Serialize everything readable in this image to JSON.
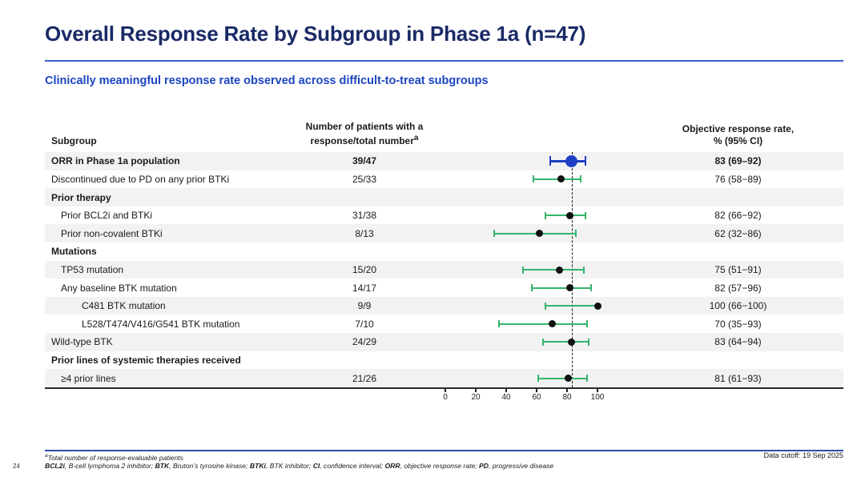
{
  "slide": {
    "title": "Overall Response Rate by Subgroup in Phase 1a (n=47)",
    "subtitle": "Clinically meaningful response rate observed across difficult-to-treat subgroups",
    "page_number": "24",
    "data_cutoff": "Data cutoff: 19 Sep 2025",
    "footnote1_sup": "a",
    "footnote1": "Total number of response-evaluable patients",
    "abbreviations": [
      {
        "term": "BCL2i",
        "desc": ", B-cell lymphoma 2 inhibitor; "
      },
      {
        "term": "BTK",
        "desc": ", Bruton’s tyrosine kinase; "
      },
      {
        "term": "BTKi",
        "desc": ", BTK inhibitor; "
      },
      {
        "term": "CI",
        "desc": ", confidence interval; "
      },
      {
        "term": "ORR",
        "desc": ", objective response rate; "
      },
      {
        "term": "PD",
        "desc": ", progressive disease"
      }
    ]
  },
  "colors": {
    "title_navy": "#1a2a66",
    "subtitle_blue": "#1b45c2",
    "divider_blue": "#3d5fc4",
    "footer_divider_blue": "#2e4fa5",
    "row_shade_gray": "#f2f2f2",
    "ci_green": "#35b46c",
    "primary_blue": "#1c3fc4",
    "marker_black": "#111111"
  },
  "table": {
    "headers": {
      "subgroup": "Subgroup",
      "patients_line1": "Number of patients with a",
      "patients_line2": "response/total number",
      "patients_sup": "a",
      "orr_line1": "Objective response rate,",
      "orr_line2": "% (95% CI)"
    },
    "rows": [
      {
        "label": "ORR in Phase 1a population",
        "indent": 0,
        "bold": true,
        "shaded": true,
        "patients": "39/47",
        "orr": "83 (69–92)",
        "est": 83,
        "lo": 69,
        "hi": 92,
        "primary": true
      },
      {
        "label": "Discontinued due to PD on any prior BTKi",
        "indent": 0,
        "bold": false,
        "shaded": false,
        "patients": "25/33",
        "orr": "76 (58−89)",
        "est": 76,
        "lo": 58,
        "hi": 89,
        "primary": false
      },
      {
        "label": "Prior therapy",
        "indent": 0,
        "bold": true,
        "shaded": true,
        "patients": "",
        "orr": "",
        "est": null,
        "lo": null,
        "hi": null,
        "primary": false
      },
      {
        "label": "Prior BCL2i and BTKi",
        "indent": 1,
        "bold": false,
        "shaded": false,
        "patients": "31/38",
        "orr": "82 (66−92)",
        "est": 82,
        "lo": 66,
        "hi": 92,
        "primary": false
      },
      {
        "label": "Prior non-covalent BTKi",
        "indent": 1,
        "bold": false,
        "shaded": true,
        "patients": "8/13",
        "orr": "62 (32−86)",
        "est": 62,
        "lo": 32,
        "hi": 86,
        "primary": false
      },
      {
        "label": "Mutations",
        "indent": 0,
        "bold": true,
        "shaded": false,
        "patients": "",
        "orr": "",
        "est": null,
        "lo": null,
        "hi": null,
        "primary": false
      },
      {
        "label": "TP53 mutation",
        "indent": 1,
        "bold": false,
        "shaded": true,
        "patients": "15/20",
        "orr": "75 (51−91)",
        "est": 75,
        "lo": 51,
        "hi": 91,
        "primary": false
      },
      {
        "label": "Any baseline BTK mutation",
        "indent": 1,
        "bold": false,
        "shaded": false,
        "patients": "14/17",
        "orr": "82 (57−96)",
        "est": 82,
        "lo": 57,
        "hi": 96,
        "primary": false
      },
      {
        "label": "C481 BTK mutation",
        "indent": 2,
        "bold": false,
        "shaded": true,
        "patients": "9/9",
        "orr": "100 (66−100)",
        "est": 100,
        "lo": 66,
        "hi": 100,
        "primary": false
      },
      {
        "label": "L528/T474/V416/G541 BTK mutation",
        "indent": 2,
        "bold": false,
        "shaded": false,
        "patients": "7/10",
        "orr": "70 (35−93)",
        "est": 70,
        "lo": 35,
        "hi": 93,
        "primary": false
      },
      {
        "label": "Wild-type BTK",
        "indent": 0,
        "bold": false,
        "shaded": true,
        "patients": "24/29",
        "orr": "83 (64−94)",
        "est": 83,
        "lo": 64,
        "hi": 94,
        "primary": false
      },
      {
        "label": "Prior lines of systemic therapies received",
        "indent": 0,
        "bold": true,
        "shaded": false,
        "patients": "",
        "orr": "",
        "est": null,
        "lo": null,
        "hi": null,
        "primary": false
      },
      {
        "label": "≥4 prior lines",
        "indent": 1,
        "bold": false,
        "shaded": true,
        "patients": "21/26",
        "orr": "81 (61−93)",
        "est": 81,
        "lo": 61,
        "hi": 93,
        "primary": false
      }
    ]
  },
  "chart_data": {
    "type": "scatter",
    "subtype": "forest-plot",
    "title": "Overall Response Rate by Subgroup in Phase 1a (n=47)",
    "xlabel": "Objective response rate, % (95% CI)",
    "xlim": [
      0,
      112
    ],
    "x_ticks": [
      0,
      20,
      40,
      60,
      80,
      100
    ],
    "reference_line_x": 83,
    "reference_line_style": "dashed",
    "grid": false,
    "legend": false,
    "ci_color": "#35b46c",
    "primary_point_color": "#1c3fc4",
    "point_color": "#111111",
    "points": [
      {
        "label": "ORR in Phase 1a population",
        "n": "39/47",
        "estimate": 83,
        "ci_low": 69,
        "ci_high": 92,
        "highlight": true
      },
      {
        "label": "Discontinued due to PD on any prior BTKi",
        "n": "25/33",
        "estimate": 76,
        "ci_low": 58,
        "ci_high": 89,
        "highlight": false
      },
      {
        "label": "Prior BCL2i and BTKi",
        "n": "31/38",
        "estimate": 82,
        "ci_low": 66,
        "ci_high": 92,
        "highlight": false
      },
      {
        "label": "Prior non-covalent BTKi",
        "n": "8/13",
        "estimate": 62,
        "ci_low": 32,
        "ci_high": 86,
        "highlight": false
      },
      {
        "label": "TP53 mutation",
        "n": "15/20",
        "estimate": 75,
        "ci_low": 51,
        "ci_high": 91,
        "highlight": false
      },
      {
        "label": "Any baseline BTK mutation",
        "n": "14/17",
        "estimate": 82,
        "ci_low": 57,
        "ci_high": 96,
        "highlight": false
      },
      {
        "label": "C481 BTK mutation",
        "n": "9/9",
        "estimate": 100,
        "ci_low": 66,
        "ci_high": 100,
        "highlight": false
      },
      {
        "label": "L528/T474/V416/G541 BTK mutation",
        "n": "7/10",
        "estimate": 70,
        "ci_low": 35,
        "ci_high": 93,
        "highlight": false
      },
      {
        "label": "Wild-type BTK",
        "n": "24/29",
        "estimate": 83,
        "ci_low": 64,
        "ci_high": 94,
        "highlight": false
      },
      {
        "label": "≥4 prior lines",
        "n": "21/26",
        "estimate": 81,
        "ci_low": 61,
        "ci_high": 93,
        "highlight": false
      }
    ]
  }
}
